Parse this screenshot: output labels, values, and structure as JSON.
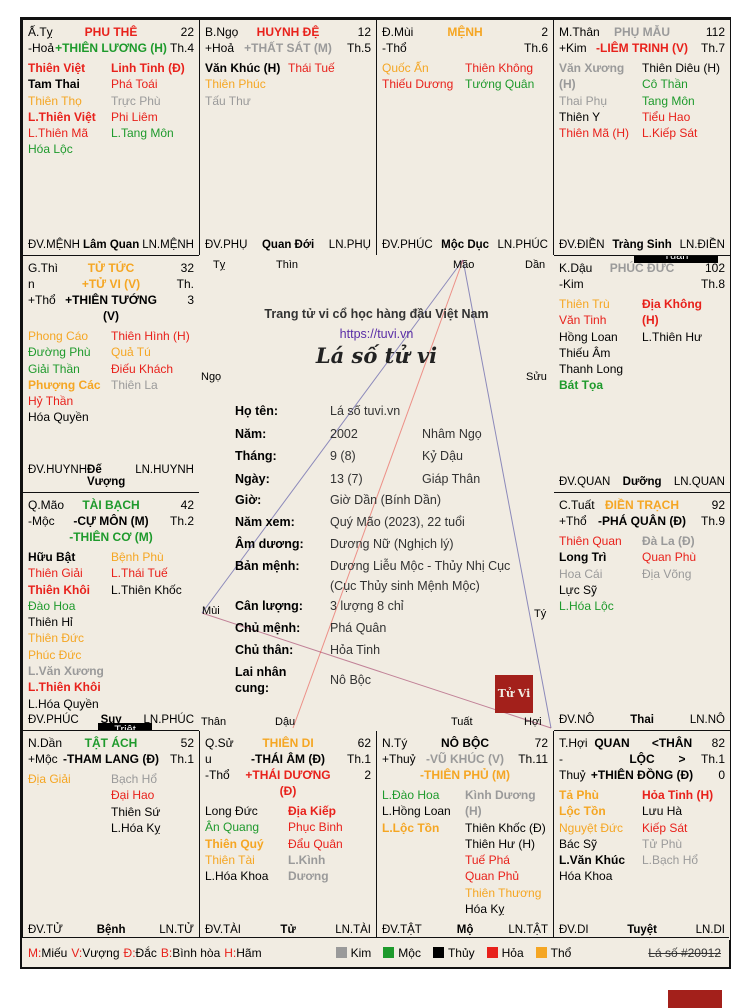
{
  "colors": {
    "red": "#e8211b",
    "orange": "#f5a623",
    "green": "#1e9a2c",
    "gray": "#9a9a9a",
    "black": "#000000",
    "frame_bg": "#f1ece2"
  },
  "cells": {
    "phu_the": {
      "tl": "Ấ.Tỵ",
      "tc": "PHU THÊ",
      "tr": "22",
      "bl": "-Hoả",
      "bc": "+THIÊN LƯƠNG (H)",
      "br": "Th.4",
      "left": [
        {
          "t": "Thiên Việt",
          "c": "red",
          "b": true
        },
        {
          "t": "Tam Thai",
          "c": "black",
          "b": true
        },
        {
          "t": "Thiên Thọ",
          "c": "orange"
        },
        {
          "t": "L.Thiên Việt",
          "c": "red",
          "b": true
        },
        {
          "t": "L.Thiên Mã",
          "c": "red"
        },
        {
          "t": "Hóa Lộc",
          "c": "green"
        }
      ],
      "right": [
        {
          "t": "Linh Tinh (Đ)",
          "c": "red",
          "b": true
        },
        {
          "t": "Phá Toái",
          "c": "red"
        },
        {
          "t": "Trực Phù",
          "c": "gray"
        },
        {
          "t": "Phi Liêm",
          "c": "red"
        },
        {
          "t": "L.Tang Môn",
          "c": "green"
        }
      ],
      "fl": "ĐV.MỆNH",
      "fm": "Lâm Quan",
      "fr": "LN.MỆNH"
    },
    "huynh_de": {
      "tl": "B.Ngọ",
      "tc": "HUYNH ĐỆ",
      "tr": "12",
      "bl": "+Hoả",
      "bc": "+THẤT SÁT (M)",
      "br": "Th.5",
      "left": [
        {
          "t": "Văn Khúc (H)",
          "c": "black",
          "b": true
        },
        {
          "t": "Thiên Phúc",
          "c": "orange"
        },
        {
          "t": "Tấu Thư",
          "c": "gray"
        }
      ],
      "right": [
        {
          "t": "Thái Tuế",
          "c": "red"
        }
      ],
      "fl": "ĐV.PHỤ",
      "fm": "Quan Đới",
      "fr": "LN.PHỤ"
    },
    "menh": {
      "tl": "Đ.Mùi",
      "tc": "MỆNH",
      "tr": "2",
      "bl": "-Thổ",
      "bc": "",
      "br": "Th.6",
      "left": [
        {
          "t": "Quốc Ấn",
          "c": "orange"
        },
        {
          "t": "Thiếu Dương",
          "c": "red"
        }
      ],
      "right": [
        {
          "t": "Thiên Không",
          "c": "red"
        },
        {
          "t": "Tướng Quân",
          "c": "green"
        }
      ],
      "fl": "ĐV.PHÚC",
      "fm": "Mộc Dục",
      "fr": "LN.PHÚC"
    },
    "phu_mau": {
      "tl": "M.Thân",
      "tc": "PHỤ MẪU",
      "tr": "112",
      "bl": "+Kim",
      "bc": "-LIÊM TRINH (V)",
      "br": "Th.7",
      "left": [
        {
          "t": "Văn Xương",
          "c": "gray",
          "b": true
        },
        {
          "t": "(H)",
          "c": "gray",
          "b": true
        },
        {
          "t": "Thai Phụ",
          "c": "gray"
        },
        {
          "t": "Thiên Y",
          "c": "black"
        },
        {
          "t": "Thiên Mã (H)",
          "c": "red"
        }
      ],
      "right": [
        {
          "t": "Thiên Diêu (H)",
          "c": "black"
        },
        {
          "t": "Cô Thần",
          "c": "green"
        },
        {
          "t": "Tang Môn",
          "c": "green"
        },
        {
          "t": "Tiểu Hao",
          "c": "red"
        },
        {
          "t": "L.Kiếp Sát",
          "c": "red"
        }
      ],
      "fl": "ĐV.ĐIỀN",
      "fm": "Tràng Sinh",
      "fr": "LN.ĐIỀN"
    },
    "tu_tuc": {
      "tl": "G.Thì",
      "tc": "TỬ TỨC",
      "tr": "32",
      "bl": "n",
      "bc": "+TỬ VI (V)",
      "br": "Th.",
      "xl": "+Thổ",
      "xc": "+THIÊN TƯỚNG",
      "xr": "3",
      "xc2": "(V)",
      "left": [
        {
          "t": "Phong Cáo",
          "c": "orange"
        },
        {
          "t": "Đường Phù",
          "c": "green"
        },
        {
          "t": "Giải Thần",
          "c": "green"
        },
        {
          "t": "Phượng Các",
          "c": "orange",
          "b": true
        },
        {
          "t": "Hỷ Thần",
          "c": "red"
        },
        {
          "t": "Hóa Quyền",
          "c": "black"
        }
      ],
      "right": [
        {
          "t": "Thiên Hình (H)",
          "c": "red"
        },
        {
          "t": "Quả Tú",
          "c": "orange"
        },
        {
          "t": "Điếu Khách",
          "c": "red"
        },
        {
          "t": "Thiên La",
          "c": "gray"
        }
      ],
      "fl": "ĐV.HUYNH",
      "fm": "Đế Vượng",
      "fr": "LN.HUYNH"
    },
    "phuc_duc": {
      "tl": "K.Dậu",
      "tc": "PHÚC ĐỨC",
      "tr": "102",
      "bl": "-Kim",
      "bc": "",
      "br": "Th.8",
      "badge": "Tuần",
      "left": [
        {
          "t": "Thiên Trù",
          "c": "orange"
        },
        {
          "t": "Văn Tinh",
          "c": "red"
        },
        {
          "t": "Hồng Loan",
          "c": "black"
        },
        {
          "t": "Thiếu Âm",
          "c": "black"
        },
        {
          "t": "Thanh Long",
          "c": "black"
        },
        {
          "t": "Bát Tọa",
          "c": "green",
          "b": true
        }
      ],
      "right": [
        {
          "t": "Địa Không",
          "c": "red",
          "b": true
        },
        {
          "t": "(H)",
          "c": "red",
          "b": true
        },
        {
          "t": "L.Thiên Hư",
          "c": "black"
        }
      ],
      "fl": "ĐV.QUAN",
      "fm": "Dưỡng",
      "fr": "LN.QUAN"
    },
    "tai_bach": {
      "tl": "Q.Mão",
      "tc": "TÀI BẠCH",
      "tr": "42",
      "bl": "-Mộc",
      "bc": "-CỰ MÔN (M)",
      "br": "Th.2",
      "xc": "-THIÊN CƠ (M)",
      "badge": "Triệt",
      "left": [
        {
          "t": "Hữu Bật",
          "c": "black",
          "b": true
        },
        {
          "t": "Thiên Giải",
          "c": "red"
        },
        {
          "t": "Thiên Khôi",
          "c": "red",
          "b": true
        },
        {
          "t": "Đào Hoa",
          "c": "green"
        },
        {
          "t": "Thiên Hỉ",
          "c": "black"
        },
        {
          "t": "Thiên Đức",
          "c": "orange"
        },
        {
          "t": "Phúc Đức",
          "c": "orange"
        },
        {
          "t": "L.Văn Xương",
          "c": "gray",
          "b": true
        },
        {
          "t": "L.Thiên Khôi",
          "c": "red",
          "b": true
        },
        {
          "t": "L.Hóa Quyền",
          "c": "black"
        }
      ],
      "right": [
        {
          "t": "Bệnh Phù",
          "c": "orange"
        },
        {
          "t": "L.Thái Tuế",
          "c": "red"
        },
        {
          "t": "L.Thiên Khốc",
          "c": "black"
        }
      ],
      "fl": "ĐV.PHÚC",
      "fm": "Suy",
      "fr": "LN.PHÚC"
    },
    "dien_trach": {
      "tl": "C.Tuất",
      "tc": "ĐIỀN TRẠCH",
      "tr": "92",
      "bl": "+Thổ",
      "bc": "-PHÁ QUÂN (Đ)",
      "br": "Th.9",
      "left": [
        {
          "t": "Thiên Quan",
          "c": "red"
        },
        {
          "t": "Long Trì",
          "c": "black",
          "b": true
        },
        {
          "t": "Hoa Cái",
          "c": "gray"
        },
        {
          "t": "Lực Sỹ",
          "c": "black"
        },
        {
          "t": "L.Hóa Lộc",
          "c": "green"
        }
      ],
      "right": [
        {
          "t": "Đà La (Đ)",
          "c": "gray",
          "b": true
        },
        {
          "t": "Quan Phù",
          "c": "red"
        },
        {
          "t": "Địa Võng",
          "c": "gray"
        }
      ],
      "fl": "ĐV.NÔ",
      "fm": "Thai",
      "fr": "LN.NÔ"
    },
    "tat_ach": {
      "tl": "N.Dần",
      "tc": "TẬT ÁCH",
      "tr": "52",
      "bl": "+Mộc",
      "bc": "-THAM LANG (Đ)",
      "br": "Th.1",
      "left": [
        {
          "t": "Địa Giải",
          "c": "orange"
        }
      ],
      "right": [
        {
          "t": "Bạch Hổ",
          "c": "gray"
        },
        {
          "t": "Đại Hao",
          "c": "red"
        },
        {
          "t": "Thiên Sứ",
          "c": "black"
        },
        {
          "t": "L.Hóa Kỵ",
          "c": "black"
        }
      ],
      "fl": "ĐV.TỬ",
      "fm": "Bệnh",
      "fr": "LN.TỬ"
    },
    "thien_di": {
      "tl": "Q.Sử",
      "tc": "THIÊN DI",
      "tr": "62",
      "bl": "u",
      "bc": "-THÁI ÂM (Đ)",
      "br": "Th.1",
      "xl": "-Thổ",
      "xc": "+THÁI DƯƠNG",
      "xr": "2",
      "xc2": "(Đ)",
      "left": [
        {
          "t": "Long Đức",
          "c": "black"
        },
        {
          "t": "Ân Quang",
          "c": "green"
        },
        {
          "t": "Thiên Quý",
          "c": "orange",
          "b": true
        },
        {
          "t": "Thiên Tài",
          "c": "orange"
        },
        {
          "t": "L.Hóa Khoa",
          "c": "black"
        }
      ],
      "right": [
        {
          "t": "Địa Kiếp",
          "c": "red",
          "b": true
        },
        {
          "t": "Phục Binh",
          "c": "red"
        },
        {
          "t": "Đẩu Quân",
          "c": "red"
        },
        {
          "t": "L.Kình",
          "c": "gray",
          "b": true
        },
        {
          "t": "Dương",
          "c": "gray",
          "b": true
        }
      ],
      "fl": "ĐV.TÀI",
      "fm": "Tử",
      "fr": "LN.TÀI"
    },
    "no_boc": {
      "tl": "N.Tý",
      "tc": "NÔ BỘC",
      "tr": "72",
      "bl": "+Thuỷ",
      "bc": "-VŨ KHÚC (V)",
      "br": "Th.11",
      "xc": "-THIÊN PHỦ (M)",
      "left": [
        {
          "t": "L.Đào Hoa",
          "c": "green"
        },
        {
          "t": "L.Hồng Loan",
          "c": "black"
        },
        {
          "t": "L.Lộc Tồn",
          "c": "orange",
          "b": true
        }
      ],
      "right": [
        {
          "t": "Kình Dương",
          "c": "gray",
          "b": true
        },
        {
          "t": "(H)",
          "c": "gray",
          "b": true
        },
        {
          "t": "Thiên Khốc (Đ)",
          "c": "black"
        },
        {
          "t": "Thiên Hư (H)",
          "c": "black"
        },
        {
          "t": "Tuế Phá",
          "c": "red"
        },
        {
          "t": "Quan Phủ",
          "c": "red"
        },
        {
          "t": "Thiên Thương",
          "c": "orange"
        },
        {
          "t": "Hóa Kỵ",
          "c": "black"
        }
      ],
      "fl": "ĐV.TẬT",
      "fm": "Mộ",
      "fr": "LN.TẬT"
    },
    "quan_loc": {
      "tl": "T.Hợi",
      "tc": "QUAN",
      "tr": "82",
      "tc2": "<THÂN",
      "bl": "-",
      "bc": "LỘC",
      "bc2": ">",
      "br": "Th.1",
      "xl": "Thuỷ",
      "xc": "+THIÊN ĐỒNG (Đ)",
      "xr": "0",
      "left": [
        {
          "t": "Tả Phù",
          "c": "orange",
          "b": true
        },
        {
          "t": "Lộc Tồn",
          "c": "orange",
          "b": true
        },
        {
          "t": "Nguyệt Đức",
          "c": "orange"
        },
        {
          "t": "Bác Sỹ",
          "c": "black"
        },
        {
          "t": "L.Văn Khúc",
          "c": "black",
          "b": true
        },
        {
          "t": "Hóa Khoa",
          "c": "black"
        }
      ],
      "right": [
        {
          "t": "Hỏa Tinh (H)",
          "c": "red",
          "b": true
        },
        {
          "t": "Lưu Hà",
          "c": "black"
        },
        {
          "t": "Kiếp Sát",
          "c": "red"
        },
        {
          "t": "Tử Phù",
          "c": "gray"
        },
        {
          "t": "L.Bạch Hổ",
          "c": "gray"
        }
      ],
      "fl": "ĐV.DI",
      "fm": "Tuyệt",
      "fr": "LN.DI"
    }
  },
  "center": {
    "corners": {
      "ty": "Tỵ",
      "thin": "Thìn",
      "mao_top": "Mão",
      "dan_top": "Dần",
      "ngo": "Ngọ",
      "suu": "Sửu",
      "mui": "Mùi",
      "ty2": "Tý",
      "than": "Thân",
      "dau": "Dậu",
      "tuat": "Tuất",
      "hoi": "Hợi"
    },
    "tagline": "Trang tử vi cổ học hàng đầu Việt Nam",
    "url": "https://tuvi.vn",
    "title": "Lá số tử vi",
    "rows": [
      {
        "k": "Họ tên:",
        "v": "Lá số tuvi.vn",
        "v2": ""
      },
      {
        "k": "Năm:",
        "v": "2002",
        "v2": "Nhâm Ngọ"
      },
      {
        "k": "Tháng:",
        "v": "9 (8)",
        "v2": "Kỷ Dậu"
      },
      {
        "k": "Ngày:",
        "v": "13 (7)",
        "v2": "Giáp Thân"
      },
      {
        "k": "Giờ:",
        "v": "Giờ Dần (Bính Dần)",
        "v2": ""
      },
      {
        "k": "Năm xem:",
        "v": "Quý Mão (2023), 22 tuổi",
        "v2": ""
      },
      {
        "k": "Âm dương:",
        "v": "Dương Nữ (Nghịch lý)",
        "v2": ""
      },
      {
        "k": "Bản mệnh:",
        "v": "Dương Liễu Mộc - Thủy Nhị Cục",
        "v2": ""
      },
      {
        "k": "",
        "v": "(Cục Thủy sinh Mệnh Mộc)",
        "v2": ""
      },
      {
        "k": "Cân lượng:",
        "v": "3 lượng 8 chỉ",
        "v2": ""
      },
      {
        "k": "Chủ mệnh:",
        "v": "Phá Quân",
        "v2": ""
      },
      {
        "k": "Chủ thân:",
        "v": "Hỏa Tinh",
        "v2": ""
      },
      {
        "k": "Lai nhân",
        "v": "",
        "v2": ""
      },
      {
        "k": "cung:",
        "v": "Nô Bộc",
        "v2": ""
      }
    ],
    "stamp": "Tử Vi"
  },
  "legend": {
    "items": [
      {
        "key": "M:",
        "label": "Miếu"
      },
      {
        "key": "V:",
        "label": "Vượng"
      },
      {
        "key": "Đ:",
        "label": "Đắc"
      },
      {
        "key": "B:",
        "label": "Bình hòa"
      },
      {
        "key": "H:",
        "label": "Hãm"
      }
    ],
    "elements": [
      {
        "label": "Kim",
        "color": "#9a9a9a"
      },
      {
        "label": "Mộc",
        "color": "#1e9a2c"
      },
      {
        "label": "Thủy",
        "color": "#000000"
      },
      {
        "label": "Hỏa",
        "color": "#e8211b"
      },
      {
        "label": "Thổ",
        "color": "#f5a623"
      }
    ],
    "chart_id": "Lá số #20912"
  }
}
